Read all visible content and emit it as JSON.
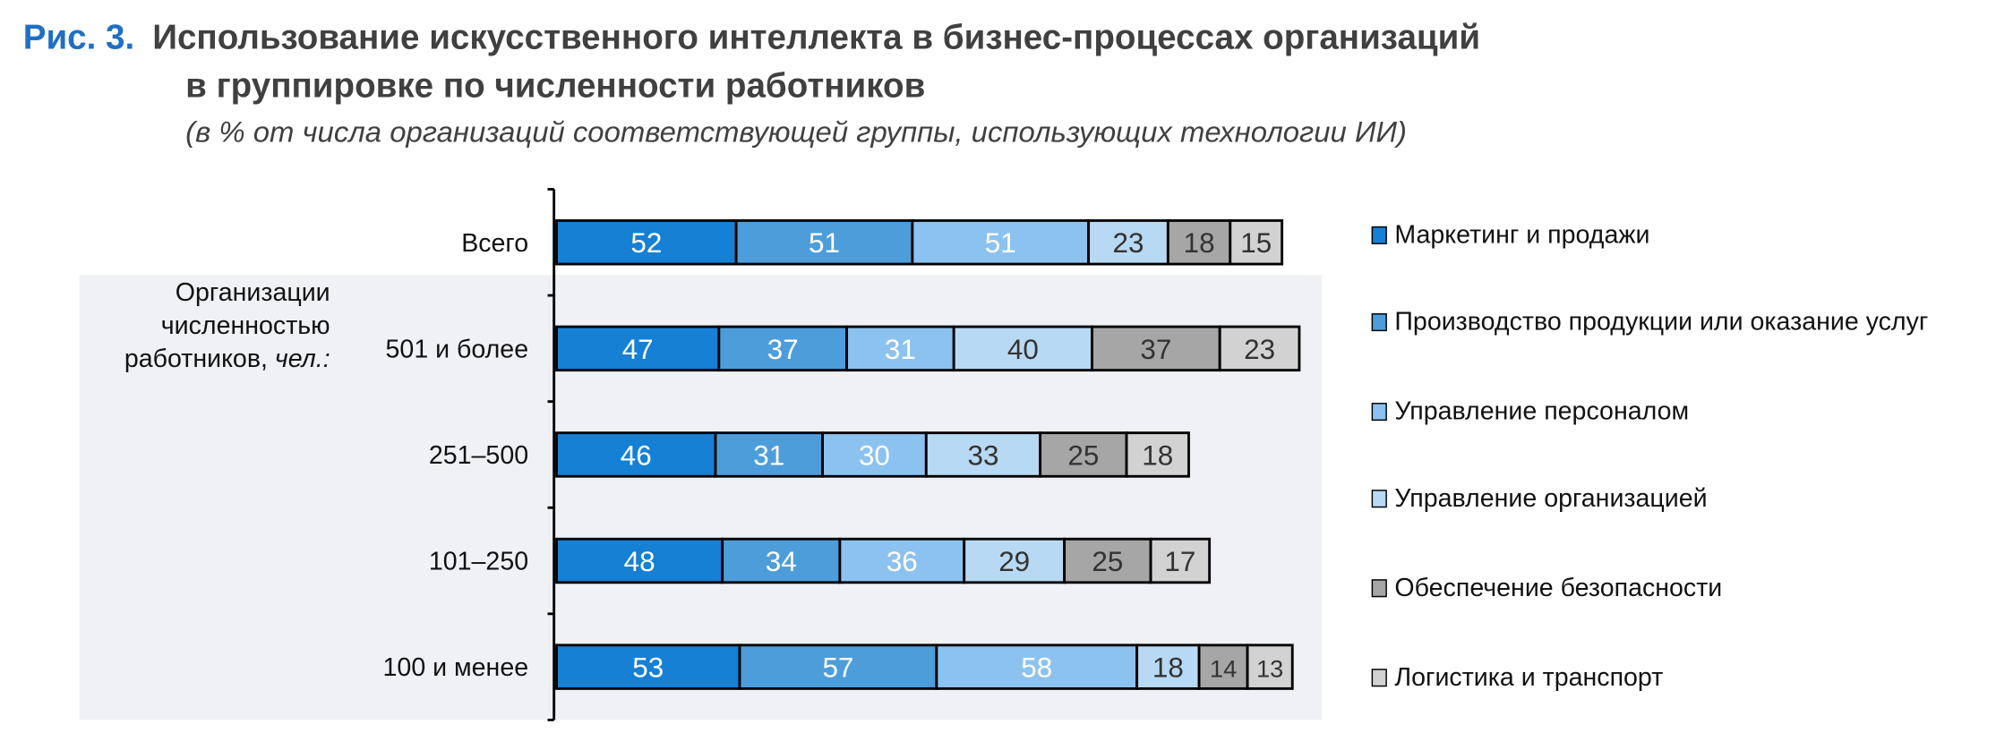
{
  "title": {
    "figure": "Рис. 3.",
    "line1": "Использование искусственного интеллекта в бизнес-процессах организаций",
    "line2": "в группировке по численности работников",
    "subtitle": "(в % от числа организаций соответствующей группы, использующих технологии ИИ)"
  },
  "group_label": {
    "line1": "Организации",
    "line2": "численностью",
    "line3": "работников,",
    "unit": "чел.:"
  },
  "chart_data": {
    "type": "bar",
    "orientation": "horizontal-stacked",
    "categories": [
      "Всего",
      "501 и более",
      "251–500",
      "101–250",
      "100 и менее"
    ],
    "series": [
      {
        "name": "Маркетинг и продажи",
        "color": "#1580d4",
        "values": [
          52,
          47,
          46,
          48,
          53
        ]
      },
      {
        "name": "Производство продукции или оказание услуг",
        "color": "#4d9ddb",
        "values": [
          51,
          37,
          31,
          34,
          57
        ]
      },
      {
        "name": "Управление персоналом",
        "color": "#8cc2ef",
        "values": [
          51,
          31,
          30,
          36,
          58
        ]
      },
      {
        "name": "Управление организацией",
        "color": "#b8d9f4",
        "values": [
          23,
          40,
          33,
          29,
          18
        ]
      },
      {
        "name": "Обеспечение безопасности",
        "color": "#a6a6a6",
        "values": [
          18,
          37,
          25,
          25,
          14
        ]
      },
      {
        "name": "Логистика и транспорт",
        "color": "#d2d2d2",
        "values": [
          15,
          23,
          18,
          17,
          13
        ]
      }
    ],
    "label_colors": [
      "#ffffff",
      "#ffffff",
      "#ffffff",
      "#333333",
      "#333333",
      "#333333"
    ],
    "legend_position": "right"
  }
}
